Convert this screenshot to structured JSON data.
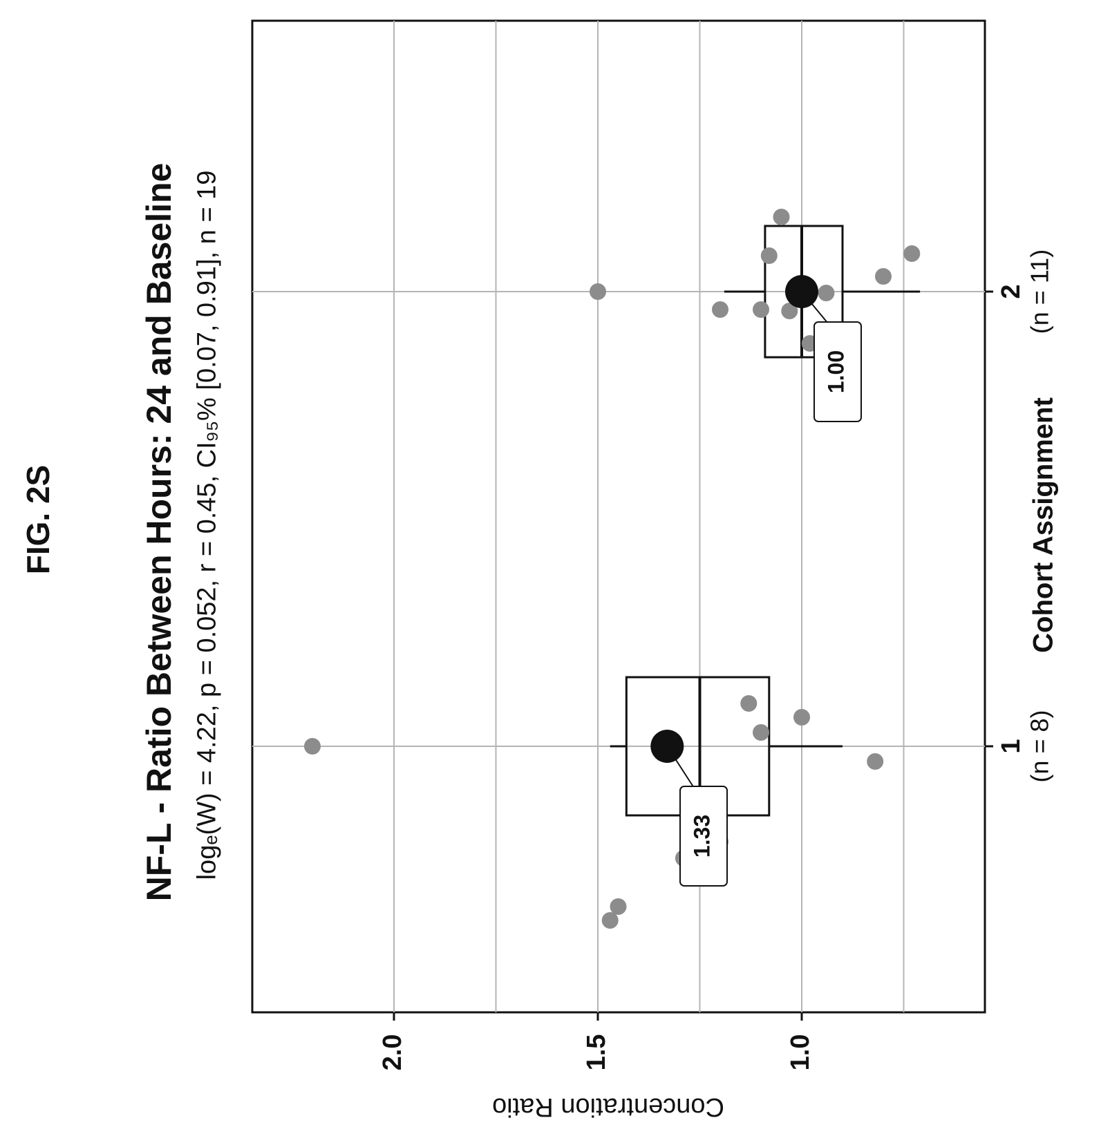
{
  "figure_label": "FIG. 2S",
  "chart_data": {
    "type": "box",
    "title": "NF-L - Ratio Between Hours: 24 and Baseline",
    "subtitle": "logₑ(W) = 4.22, p = 0.052, r = 0.45, CI₉₅% [0.07, 0.91], n = 19",
    "xlabel": "Cohort Assignment",
    "ylabel": "Concentration Ratio",
    "categories": [
      "1",
      "2"
    ],
    "category_counts": [
      "(n = 8)",
      "(n = 11)"
    ],
    "ylim": [
      0.6,
      2.25
    ],
    "yticks": [
      1.0,
      1.5,
      2.0
    ],
    "ytick_labels": [
      "1.0",
      "1.5",
      "2.0"
    ],
    "minor_gridlines": [
      0.75,
      1.25,
      1.75
    ],
    "grid": true,
    "colors": {
      "points": "#8c8c8c",
      "mean": "#111111",
      "box": "#111111",
      "grid": "#b4b4b4"
    },
    "boxes": [
      {
        "category": "1",
        "min": 0.9,
        "q1": 1.08,
        "median": 1.25,
        "q3": 1.43,
        "max": 1.47,
        "mean": 1.33,
        "mean_label": "1.33",
        "points": [
          2.2,
          1.47,
          1.45,
          1.29,
          1.2,
          1.13,
          1.1,
          1.0,
          0.82
        ]
      },
      {
        "category": "2",
        "min": 0.71,
        "q1": 0.9,
        "median": 1.0,
        "q3": 1.09,
        "max": 1.19,
        "mean": 1.0,
        "mean_label": "1.00",
        "points": [
          1.5,
          1.2,
          1.1,
          1.08,
          1.05,
          1.03,
          0.98,
          0.94,
          0.92,
          0.8,
          0.73
        ]
      }
    ]
  }
}
